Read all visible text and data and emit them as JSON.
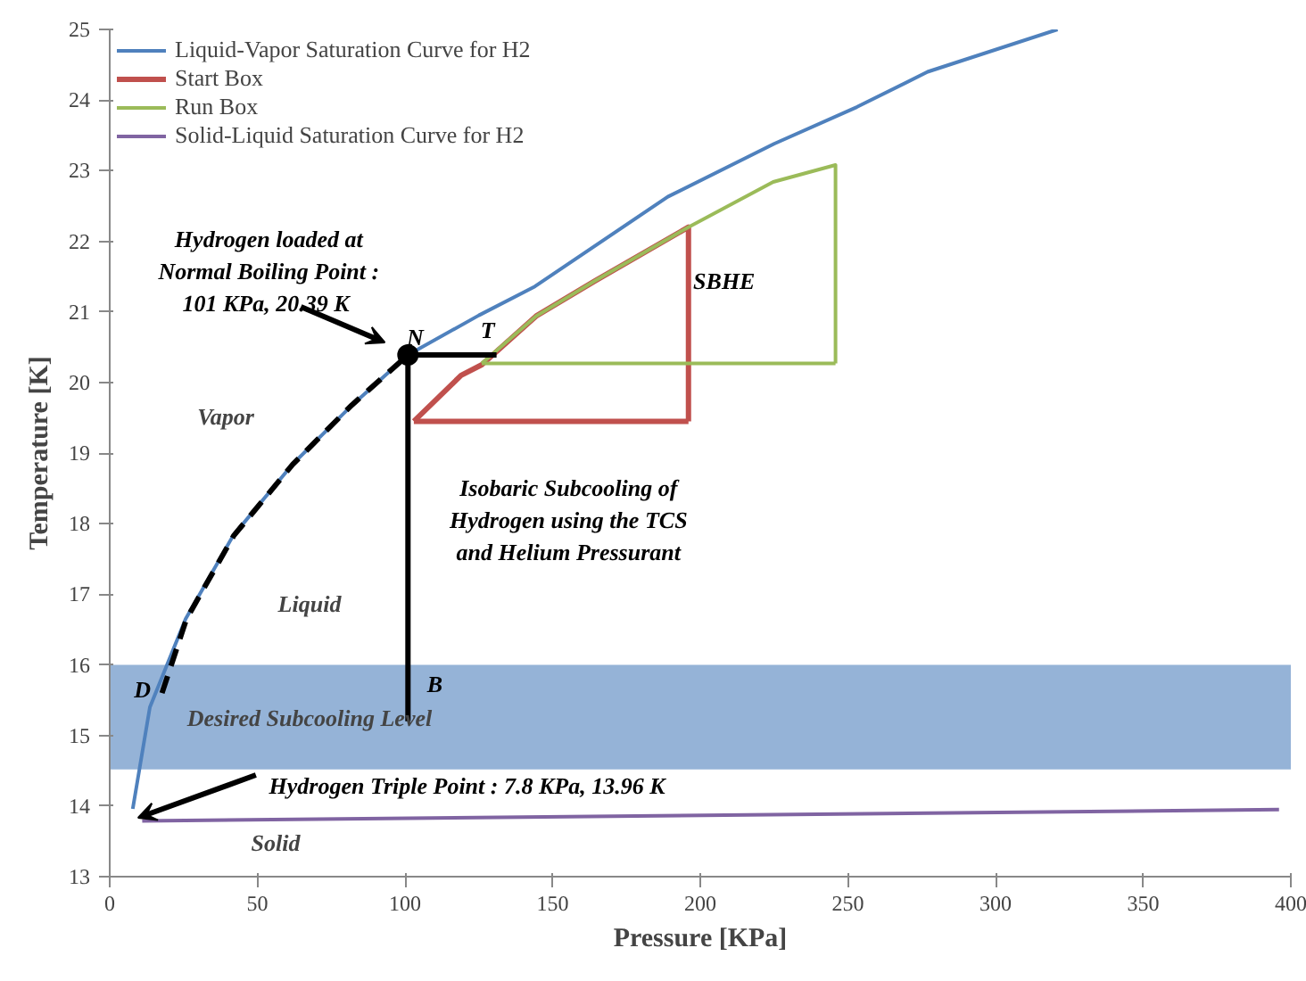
{
  "chart_data": {
    "type": "line",
    "xlabel": "Pressure [KPa]",
    "ylabel": "Temperature [K]",
    "xlim": [
      0,
      400
    ],
    "ylim": [
      13,
      25
    ],
    "xticks": [
      0,
      50,
      100,
      150,
      200,
      250,
      300,
      350,
      400
    ],
    "yticks": [
      13,
      14,
      15,
      16,
      17,
      18,
      19,
      20,
      21,
      22,
      23,
      24,
      25
    ],
    "grid": false,
    "legend": "top left",
    "bands": [
      {
        "axis": "y",
        "from": 14.52,
        "to": 16.0,
        "color": "#95b3d7"
      }
    ],
    "series": [
      {
        "name": "Liquid-Vapor Saturation Curve for H2",
        "color": "#4f81bd",
        "x": [
          7.8,
          13.6,
          25.7,
          41.8,
          61.9,
          82.1,
          101,
          125,
          144,
          189,
          225,
          253,
          277,
          321
        ],
        "values": [
          13.96,
          15.4,
          16.65,
          17.83,
          18.84,
          19.68,
          20.39,
          20.95,
          21.36,
          22.63,
          23.38,
          23.9,
          24.4,
          25.0
        ]
      },
      {
        "name": "Start Box",
        "color": "#c0504d",
        "x": [
          103,
          119,
          126,
          144.4,
          164.4,
          196,
          196
        ],
        "values": [
          19.45,
          20.1,
          20.25,
          20.94,
          21.44,
          22.2,
          19.45
        ]
      },
      {
        "color": "#c0504d",
        "x": [
          103,
          196
        ],
        "values": [
          19.45,
          19.45
        ]
      },
      {
        "name": "Run Box",
        "color": "#9bbb59",
        "x": [
          126,
          144.4,
          164.4,
          196,
          224.7,
          245.8,
          245.8
        ],
        "values": [
          20.27,
          20.94,
          21.44,
          22.2,
          22.84,
          23.08,
          20.27
        ]
      },
      {
        "color": "#9bbb59",
        "x": [
          126,
          245.8
        ],
        "values": [
          20.27,
          20.27
        ]
      },
      {
        "name": "Solid-Liquid Saturation Curve for H2",
        "color": "#8064a2",
        "x": [
          11,
          396
        ],
        "values": [
          13.79,
          13.95
        ]
      },
      {
        "type": "line",
        "color": "#000000",
        "line_style": "dashed",
        "x": [
          17.7,
          26,
          42,
          62,
          82,
          101
        ],
        "values": [
          15.6,
          16.65,
          17.83,
          18.84,
          19.68,
          20.39
        ]
      },
      {
        "type": "line",
        "color": "#000000",
        "x": [
          101,
          101
        ],
        "values": [
          20.39,
          15.2
        ]
      },
      {
        "type": "line",
        "color": "#000000",
        "x": [
          101,
          131
        ],
        "values": [
          20.39,
          20.39
        ]
      },
      {
        "type": "scatter",
        "color": "#000000",
        "marker": "circle",
        "x": [
          101
        ],
        "values": [
          20.39
        ]
      }
    ],
    "annotations": [
      {
        "text": "Hydrogen loaded at\nNormal Boiling Point :\n101 KPa,  20.39 K",
        "x": 101,
        "y": 20.39
      },
      {
        "text": "Isobaric Subcooling of\nHydrogen using the TCS\nand Helium Pressurant",
        "x": 101,
        "y": 18.05
      },
      {
        "text": "Hydrogen Triple Point : 7.8 KPa,  13.96 K",
        "x": 7.8,
        "y": 13.96
      },
      {
        "text": "N",
        "x": 101,
        "y": 20.39
      },
      {
        "text": "T",
        "x": 131,
        "y": 20.39
      },
      {
        "text": "B",
        "x": 101,
        "y": 15.2
      },
      {
        "text": "D",
        "x": 17.7,
        "y": 15.6
      },
      {
        "text": "SBHE",
        "x": 196,
        "y": 22.2
      },
      "Vapor",
      "Liquid",
      "Solid",
      "Desired Subcooling Level"
    ]
  }
}
